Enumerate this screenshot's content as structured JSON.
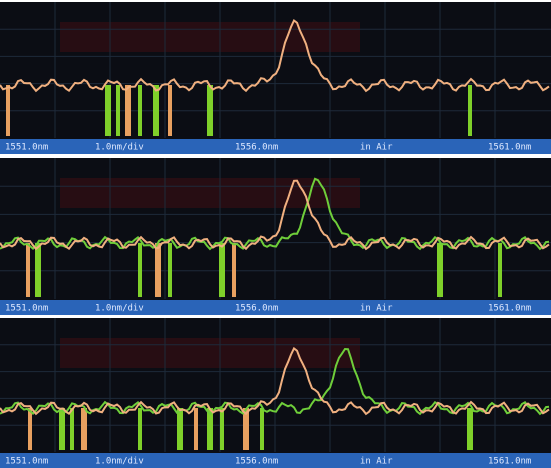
{
  "panels": [
    {
      "labels": [
        "1551.0nm",
        "1.0nm/div",
        "1556.0nm",
        "in Air",
        "1561.0nm"
      ]
    },
    {
      "labels": [
        "1551.0nm",
        "1.0nm/div",
        "1556.0nm",
        "in Air",
        "1561.0nm"
      ]
    },
    {
      "labels": [
        "1551.0nm",
        "1.0nm/div",
        "1556.0nm",
        "in Air",
        "1561.0nm"
      ]
    }
  ]
}
